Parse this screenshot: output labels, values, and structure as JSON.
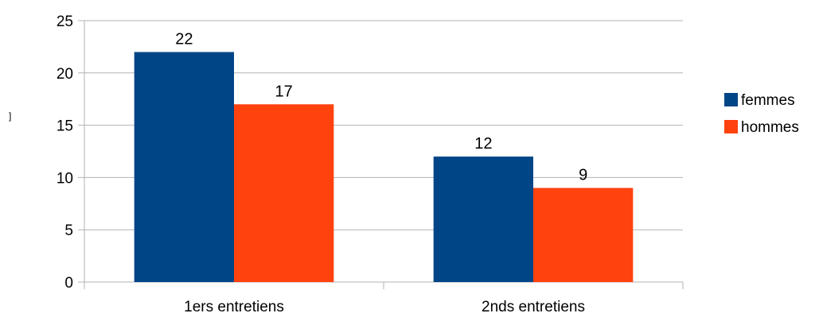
{
  "chart_data": {
    "type": "bar",
    "categories": [
      "1ers entretiens",
      "2nds entretiens"
    ],
    "series": [
      {
        "name": "femmes",
        "values": [
          22,
          12
        ],
        "color": "#004586"
      },
      {
        "name": "hommes",
        "values": [
          17,
          9
        ],
        "color": "#ff420e"
      }
    ],
    "title": "",
    "xlabel": "",
    "ylabel": "",
    "ylim": [
      0,
      25
    ],
    "yticks": [
      0,
      5,
      10,
      15,
      20,
      25
    ],
    "grid": true,
    "legend": "right",
    "data_labels": true
  },
  "stray_mark": "]"
}
